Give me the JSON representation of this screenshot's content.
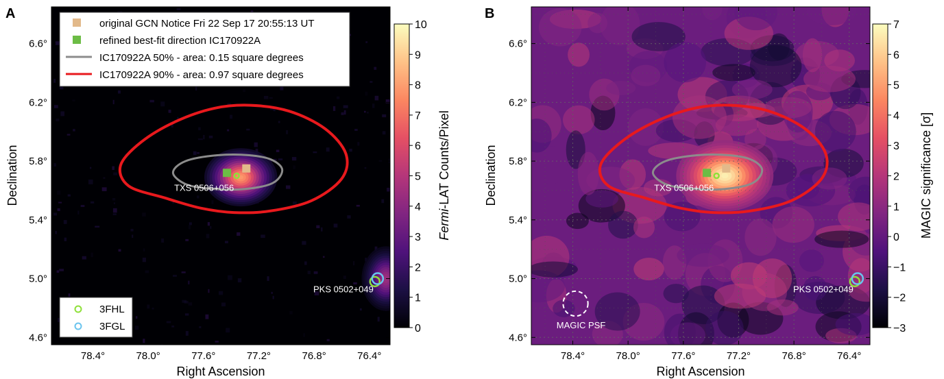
{
  "chart_data": [
    {
      "type": "heatmap",
      "panel_label": "A",
      "xlabel": "Right Ascension",
      "ylabel": "Declination",
      "xlim": [
        78.7,
        76.25
      ],
      "ylim": [
        4.55,
        6.85
      ],
      "x_ticks": [
        78.4,
        78.0,
        77.6,
        77.2,
        76.8,
        76.4
      ],
      "x_tick_labels": [
        "78.4°",
        "78.0°",
        "77.6°",
        "77.2°",
        "76.8°",
        "76.4°"
      ],
      "y_ticks": [
        4.6,
        5.0,
        5.4,
        5.8,
        6.2,
        6.6
      ],
      "y_tick_labels": [
        "4.6°",
        "5.0°",
        "5.4°",
        "5.8°",
        "6.2°",
        "6.6°"
      ],
      "grid": false,
      "colorbar": {
        "label_prefix": "Fermi",
        "label_suffix": "-LAT Counts/Pixel",
        "range": [
          0,
          10
        ],
        "ticks": [
          0,
          1,
          2,
          3,
          4,
          5,
          6,
          7,
          8,
          9,
          10
        ],
        "tick_labels": [
          "0",
          "1",
          "2",
          "3",
          "4",
          "5",
          "6",
          "7",
          "8",
          "9",
          "10"
        ]
      },
      "hotspots": [
        {
          "ra": 77.33,
          "dec": 5.69,
          "peak": 8.0,
          "sigma_ra": 0.12,
          "sigma_dec": 0.09
        },
        {
          "ra": 76.28,
          "dec": 5.0,
          "peak": 4.5,
          "sigma_ra": 0.08,
          "sigma_dec": 0.1
        }
      ],
      "legend": {
        "placement": "top-left",
        "entries": [
          {
            "kind": "square",
            "color": "#e2b98a",
            "label": "original GCN Notice Fri 22 Sep 17 20:55:13 UT"
          },
          {
            "kind": "square",
            "color": "#6cbc45",
            "label": "refined best-fit direction IC170922A"
          },
          {
            "kind": "line",
            "color": "#8c8c8c",
            "label": "IC170922A 50% - area: 0.15 square degrees"
          },
          {
            "kind": "line",
            "color": "#e8191d",
            "label": "IC170922A 90% - area: 0.97 square degrees"
          }
        ]
      },
      "catalog_legend": {
        "placement": "bottom-left",
        "entries": [
          {
            "color": "#8fe03a",
            "label": "3FHL"
          },
          {
            "color": "#6ac4ee",
            "label": "3FGL"
          }
        ]
      },
      "sources": [
        {
          "name": "TXS 0506+056",
          "ra": 77.36,
          "dec": 5.69
        },
        {
          "name": "PKS 0502+049",
          "ra": 76.35,
          "dec": 4.99
        }
      ],
      "markers": [
        {
          "kind": "original-gcn",
          "ra": 77.29,
          "dec": 5.75
        },
        {
          "kind": "refined-best-fit",
          "ra": 77.43,
          "dec": 5.72
        },
        {
          "kind": "3fhl",
          "ra": 77.36,
          "dec": 5.7
        },
        {
          "kind": "3fhl",
          "ra": 76.36,
          "dec": 4.98
        },
        {
          "kind": "3fgl",
          "ra": 76.34,
          "dec": 5.0
        }
      ],
      "contour_90": [
        [
          77.26,
          6.18
        ],
        [
          76.98,
          6.14
        ],
        [
          76.72,
          6.02
        ],
        [
          76.57,
          5.85
        ],
        [
          76.6,
          5.68
        ],
        [
          76.82,
          5.53
        ],
        [
          77.12,
          5.46
        ],
        [
          77.38,
          5.45
        ],
        [
          77.62,
          5.48
        ],
        [
          77.88,
          5.55
        ],
        [
          78.14,
          5.63
        ],
        [
          78.2,
          5.77
        ],
        [
          78.05,
          5.93
        ],
        [
          77.8,
          6.07
        ],
        [
          77.52,
          6.16
        ]
      ],
      "contour_50": [
        [
          77.27,
          5.84
        ],
        [
          77.11,
          5.81
        ],
        [
          77.03,
          5.74
        ],
        [
          77.1,
          5.65
        ],
        [
          77.3,
          5.61
        ],
        [
          77.52,
          5.61
        ],
        [
          77.72,
          5.64
        ],
        [
          77.82,
          5.72
        ],
        [
          77.73,
          5.8
        ],
        [
          77.5,
          5.84
        ]
      ]
    },
    {
      "type": "heatmap",
      "panel_label": "B",
      "xlabel": "Right Ascension",
      "ylabel": "Declination",
      "xlim": [
        78.7,
        76.25
      ],
      "ylim": [
        4.55,
        6.85
      ],
      "x_ticks": [
        78.4,
        78.0,
        77.6,
        77.2,
        76.8,
        76.4
      ],
      "x_tick_labels": [
        "78.4°",
        "78.0°",
        "77.6°",
        "77.2°",
        "76.8°",
        "76.4°"
      ],
      "y_ticks": [
        4.6,
        5.0,
        5.4,
        5.8,
        6.2,
        6.6
      ],
      "y_tick_labels": [
        "4.6°",
        "5.0°",
        "5.4°",
        "5.8°",
        "6.2°",
        "6.6°"
      ],
      "grid": true,
      "colorbar": {
        "label": "MAGIC significance [σ]",
        "range": [
          -3,
          7
        ],
        "ticks": [
          -3,
          -2,
          -1,
          0,
          1,
          2,
          3,
          4,
          5,
          6,
          7
        ],
        "tick_labels": [
          "−3",
          "−2",
          "−1",
          "0",
          "1",
          "2",
          "3",
          "4",
          "5",
          "6",
          "7"
        ]
      },
      "hotspots": [
        {
          "ra": 77.3,
          "dec": 5.7,
          "peak": 6.8,
          "sigma_ra": 0.16,
          "sigma_dec": 0.11
        }
      ],
      "psf_circle": {
        "label": "MAGIC PSF",
        "ra": 78.38,
        "dec": 4.83,
        "radius_deg": 0.09
      },
      "sources": [
        {
          "name": "TXS 0506+056",
          "ra": 77.36,
          "dec": 5.69
        },
        {
          "name": "PKS 0502+049",
          "ra": 76.35,
          "dec": 4.99
        }
      ],
      "markers": [
        {
          "kind": "original-gcn",
          "ra": 77.29,
          "dec": 5.75
        },
        {
          "kind": "refined-best-fit",
          "ra": 77.43,
          "dec": 5.72
        },
        {
          "kind": "3fhl",
          "ra": 77.36,
          "dec": 5.7
        },
        {
          "kind": "3fhl",
          "ra": 76.36,
          "dec": 4.98
        },
        {
          "kind": "3fgl",
          "ra": 76.34,
          "dec": 5.0
        }
      ],
      "contour_90": [
        [
          77.26,
          6.18
        ],
        [
          76.98,
          6.14
        ],
        [
          76.72,
          6.02
        ],
        [
          76.57,
          5.85
        ],
        [
          76.6,
          5.68
        ],
        [
          76.82,
          5.53
        ],
        [
          77.12,
          5.46
        ],
        [
          77.38,
          5.45
        ],
        [
          77.62,
          5.48
        ],
        [
          77.88,
          5.55
        ],
        [
          78.14,
          5.63
        ],
        [
          78.2,
          5.77
        ],
        [
          78.05,
          5.93
        ],
        [
          77.8,
          6.07
        ],
        [
          77.52,
          6.16
        ]
      ],
      "contour_50": [
        [
          77.27,
          5.84
        ],
        [
          77.11,
          5.81
        ],
        [
          77.03,
          5.74
        ],
        [
          77.1,
          5.65
        ],
        [
          77.3,
          5.61
        ],
        [
          77.52,
          5.61
        ],
        [
          77.72,
          5.64
        ],
        [
          77.82,
          5.72
        ],
        [
          77.73,
          5.8
        ],
        [
          77.5,
          5.84
        ]
      ]
    }
  ],
  "colors": {
    "contour_90": "#e8191d",
    "contour_50": "#8c8c8c",
    "original_gcn": "#e2b98a",
    "refined_best_fit": "#6cbc45",
    "fhl": "#8fe03a",
    "fgl": "#6ac4ee",
    "colormap": [
      "#000004",
      "#1c1044",
      "#4f127b",
      "#812581",
      "#b5367a",
      "#e55064",
      "#fb8761",
      "#fec287",
      "#fcfdbf"
    ]
  }
}
